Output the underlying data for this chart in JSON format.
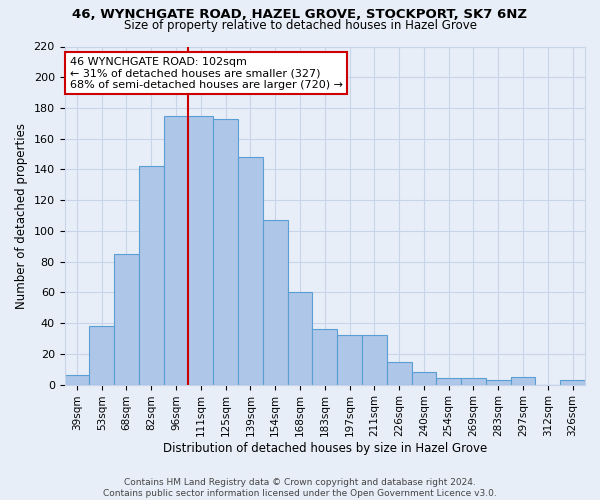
{
  "title1": "46, WYNCHGATE ROAD, HAZEL GROVE, STOCKPORT, SK7 6NZ",
  "title2": "Size of property relative to detached houses in Hazel Grove",
  "xlabel": "Distribution of detached houses by size in Hazel Grove",
  "ylabel": "Number of detached properties",
  "footer1": "Contains HM Land Registry data © Crown copyright and database right 2024.",
  "footer2": "Contains public sector information licensed under the Open Government Licence v3.0.",
  "categories": [
    "39sqm",
    "53sqm",
    "68sqm",
    "82sqm",
    "96sqm",
    "111sqm",
    "125sqm",
    "139sqm",
    "154sqm",
    "168sqm",
    "183sqm",
    "197sqm",
    "211sqm",
    "226sqm",
    "240sqm",
    "254sqm",
    "269sqm",
    "283sqm",
    "297sqm",
    "312sqm",
    "326sqm"
  ],
  "values": [
    6,
    38,
    85,
    142,
    175,
    175,
    173,
    148,
    107,
    60,
    36,
    32,
    32,
    15,
    8,
    4,
    4,
    3,
    5,
    0,
    3
  ],
  "bar_color": "#aec6e8",
  "bar_edge_color": "#5a9fd4",
  "grid_color": "#c8d4e8",
  "annotation_text": "46 WYNCHGATE ROAD: 102sqm\n← 31% of detached houses are smaller (327)\n68% of semi-detached houses are larger (720) →",
  "vline_x_index": 5,
  "vline_color": "#cc0000",
  "annot_box_color": "#ffffff",
  "annot_box_edge": "#cc0000",
  "ylim": [
    0,
    220
  ],
  "yticks": [
    0,
    20,
    40,
    60,
    80,
    100,
    120,
    140,
    160,
    180,
    200,
    220
  ],
  "bg_color": "#e8eef8"
}
